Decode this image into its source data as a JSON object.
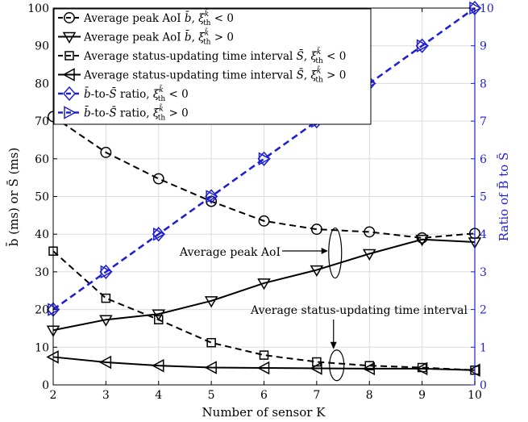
{
  "chart_data": {
    "type": "line",
    "xlabel": "Number of sensor K",
    "ylabel_left": "b̄ (ms) or S̄ (ms)",
    "ylabel_right": "Ratio of B̄ to S̄",
    "xlim": [
      2,
      10
    ],
    "ylim_left": [
      0,
      100
    ],
    "ylim_right": [
      0,
      10
    ],
    "grid": true,
    "legend_position": "top-left",
    "x": [
      2,
      3,
      4,
      5,
      6,
      7,
      8,
      9,
      10
    ],
    "x_ticks": [
      "2",
      "3",
      "4",
      "5",
      "6",
      "7",
      "8",
      "9",
      "10"
    ],
    "y_left_ticks": [
      "0",
      "10",
      "20",
      "30",
      "40",
      "50",
      "60",
      "70",
      "80",
      "90",
      "100"
    ],
    "y_right_ticks": [
      "0",
      "1",
      "2",
      "3",
      "4",
      "5",
      "6",
      "7",
      "8",
      "9",
      "10"
    ],
    "series": [
      {
        "name": "Average peak AoI b̄, ξ_th < 0",
        "axis": "left",
        "marker": "circle",
        "line": "dashed",
        "color": "#000000",
        "values": [
          71.2,
          61.7,
          54.7,
          48.7,
          43.5,
          41.3,
          40.6,
          39.0,
          40.2
        ]
      },
      {
        "name": "Average peak AoI b̄, ξ_th > 0",
        "axis": "left",
        "marker": "triangle-down",
        "line": "solid",
        "color": "#000000",
        "values": [
          14.5,
          17.3,
          18.8,
          22.3,
          27.0,
          30.5,
          34.8,
          38.6,
          37.9
        ]
      },
      {
        "name": "Average status-updating time interval S̄, ξ_th < 0",
        "axis": "left",
        "marker": "square",
        "line": "dashed",
        "color": "#000000",
        "values": [
          35.5,
          23.0,
          17.3,
          11.2,
          7.9,
          6.1,
          5.1,
          4.6,
          3.9
        ]
      },
      {
        "name": "Average status-updating time interval S̄, ξ_th > 0",
        "axis": "left",
        "marker": "triangle-left",
        "line": "solid",
        "color": "#000000",
        "values": [
          7.4,
          6.0,
          5.1,
          4.6,
          4.5,
          4.4,
          4.3,
          4.3,
          3.9
        ]
      },
      {
        "name": "b̄-to-S̄ ratio, ξ_th < 0",
        "axis": "right",
        "marker": "diamond",
        "line": "dashed",
        "color": "#1f1fd6",
        "values": [
          2,
          3,
          4,
          5,
          6,
          7,
          8,
          9,
          10
        ]
      },
      {
        "name": "b̄-to-S̄ ratio, ξ_th > 0",
        "axis": "right",
        "marker": "triangle-right",
        "line": "dashed",
        "color": "#1f1fd6",
        "values": [
          2,
          3,
          4,
          5,
          6,
          7,
          8,
          9,
          10
        ]
      }
    ],
    "legend": [
      {
        "prefix": "Average peak AoI ",
        "var": "b̄",
        "sep": ", ",
        "xi": "ξ",
        "sup": "k̃",
        "sub": "th",
        "cond": " < 0"
      },
      {
        "prefix": "Average peak AoI ",
        "var": "b̄",
        "sep": ", ",
        "xi": "ξ",
        "sup": "k̃",
        "sub": "th",
        "cond": " > 0"
      },
      {
        "prefix": "Average status-updating time interval ",
        "var": "S̄",
        "sep": ", ",
        "xi": "ξ",
        "sup": "k̃",
        "sub": "th",
        "cond": " < 0"
      },
      {
        "prefix": "Average status-updating time interval ",
        "var": "S̄",
        "sep": ", ",
        "xi": "ξ",
        "sup": "k̃",
        "sub": "th",
        "cond": " > 0"
      },
      {
        "prefix": "",
        "var": "b̄",
        "sep": "-to-",
        "var2": "S̄",
        "sep2": " ratio, ",
        "xi": "ξ",
        "sup": "k̃",
        "sub": "th",
        "cond": " < 0"
      },
      {
        "prefix": "",
        "var": "b̄",
        "sep": "-to-",
        "var2": "S̄",
        "sep2": " ratio, ",
        "xi": "ξ",
        "sup": "k̃",
        "sub": "th",
        "cond": " > 0"
      }
    ],
    "annotations": [
      {
        "text": "Average peak AoI",
        "target_x": 7.35,
        "target_y": 35
      },
      {
        "text": "Average status-updating time interval",
        "target_x": 7.35,
        "target_y": 5.2
      }
    ]
  }
}
